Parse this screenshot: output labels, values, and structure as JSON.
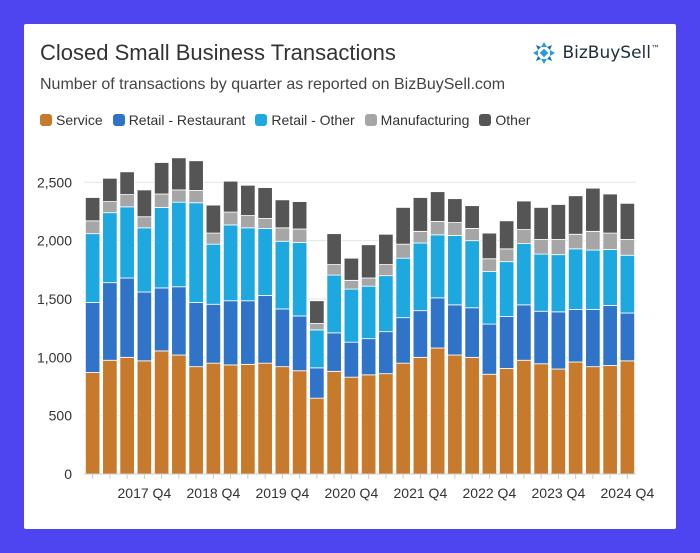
{
  "header": {
    "title": "Closed Small Business Transactions",
    "subtitle": "Number of transactions by quarter as reported on BizBuySell.com",
    "logo_text": "BizBuySell",
    "logo_tm": "™"
  },
  "colors": {
    "background": "#4f45f0",
    "Service": "#c87a2c",
    "Retail - Restaurant": "#2f74c8",
    "Retail - Other": "#1ea8e0",
    "Manufacturing": "#a6a6a6",
    "Other": "#555555",
    "logo": "#2a9be0"
  },
  "chart_data": {
    "type": "bar",
    "stacked": true,
    "grid": true,
    "legend": "top-left",
    "ylim": [
      0,
      2700
    ],
    "yticks": [
      0,
      500,
      1000,
      1500,
      2000,
      2500
    ],
    "ytick_labels": [
      "0",
      "500",
      "1,000",
      "1,500",
      "2,000",
      "2,500"
    ],
    "categories": [
      "2017 Q1",
      "2017 Q2",
      "2017 Q3",
      "2017 Q4",
      "2018 Q1",
      "2018 Q2",
      "2018 Q3",
      "2018 Q4",
      "2019 Q1",
      "2019 Q2",
      "2019 Q3",
      "2019 Q4",
      "2020 Q1",
      "2020 Q2",
      "2020 Q3",
      "2020 Q4",
      "2021 Q1",
      "2021 Q2",
      "2021 Q3",
      "2021 Q4",
      "2022 Q1",
      "2022 Q2",
      "2022 Q3",
      "2022 Q4",
      "2023 Q1",
      "2023 Q2",
      "2023 Q3",
      "2023 Q4",
      "2024 Q1",
      "2024 Q2",
      "2024 Q3",
      "2024 Q4"
    ],
    "xtick_labels": [
      {
        "index": 3,
        "label": "2017 Q4"
      },
      {
        "index": 7,
        "label": "2018 Q4"
      },
      {
        "index": 11,
        "label": "2019 Q4"
      },
      {
        "index": 15,
        "label": "2020 Q4"
      },
      {
        "index": 19,
        "label": "2021 Q4"
      },
      {
        "index": 23,
        "label": "2022 Q4"
      },
      {
        "index": 27,
        "label": "2023 Q4"
      },
      {
        "index": 31,
        "label": "2024 Q4"
      }
    ],
    "series": [
      {
        "name": "Service",
        "values": [
          870,
          975,
          1000,
          970,
          1055,
          1020,
          920,
          950,
          935,
          940,
          950,
          920,
          885,
          650,
          880,
          830,
          850,
          860,
          950,
          1000,
          1080,
          1020,
          1000,
          855,
          905,
          975,
          945,
          900,
          960,
          920,
          930,
          970
        ]
      },
      {
        "name": "Retail - Restaurant",
        "values": [
          600,
          665,
          680,
          590,
          540,
          585,
          550,
          505,
          550,
          545,
          580,
          495,
          470,
          260,
          330,
          300,
          310,
          360,
          390,
          400,
          430,
          430,
          425,
          430,
          445,
          475,
          450,
          490,
          450,
          490,
          515,
          410
        ]
      },
      {
        "name": "Retail - Other",
        "values": [
          590,
          600,
          610,
          550,
          690,
          725,
          855,
          515,
          650,
          625,
          575,
          580,
          630,
          325,
          495,
          455,
          450,
          480,
          510,
          580,
          540,
          595,
          575,
          450,
          470,
          525,
          490,
          490,
          520,
          510,
          480,
          495
        ]
      },
      {
        "name": "Manufacturing",
        "values": [
          110,
          95,
          105,
          95,
          115,
          105,
          105,
          95,
          110,
          105,
          85,
          115,
          115,
          55,
          90,
          75,
          70,
          95,
          120,
          100,
          115,
          110,
          105,
          110,
          110,
          120,
          125,
          130,
          125,
          160,
          140,
          135
        ]
      },
      {
        "name": "Other",
        "values": [
          200,
          200,
          195,
          230,
          270,
          275,
          255,
          240,
          265,
          260,
          265,
          240,
          235,
          195,
          265,
          190,
          285,
          260,
          315,
          290,
          255,
          205,
          195,
          220,
          240,
          245,
          275,
          300,
          330,
          370,
          335,
          310
        ]
      }
    ]
  }
}
